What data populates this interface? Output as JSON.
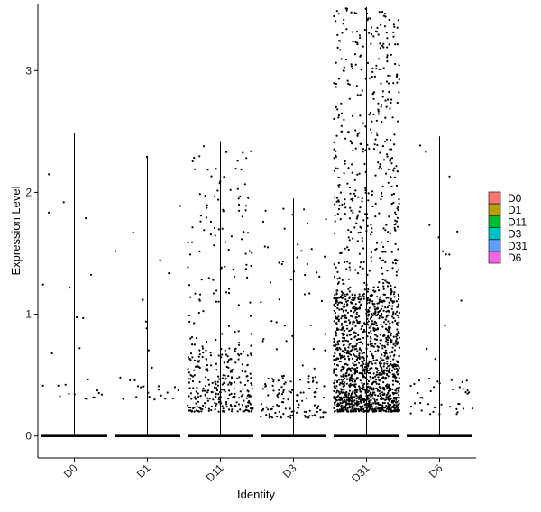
{
  "chart_data": {
    "type": "violin-jitter",
    "xlabel": "Identity",
    "ylabel": "Expression Level",
    "ylim": [
      -0.18,
      3.55
    ],
    "yticks": [
      0,
      1,
      2,
      3
    ],
    "categories": [
      "D0",
      "D1",
      "D11",
      "D3",
      "D31",
      "D6"
    ],
    "fill_colors": [
      "#F8766D",
      "#B79F00",
      "#00BA38",
      "#00BFC4",
      "#619CFF",
      "#F564E3"
    ],
    "max_values": [
      2.49,
      2.3,
      2.42,
      1.95,
      3.52,
      2.46
    ],
    "nonzero_point_counts": [
      25,
      30,
      380,
      160,
      1800,
      55
    ],
    "nonzero_min": [
      0.3,
      0.3,
      0.2,
      0.15,
      0.2,
      0.18
    ],
    "legend": {
      "placement": "right",
      "entries": [
        "D0",
        "D1",
        "D11",
        "D3",
        "D31",
        "D6"
      ]
    },
    "point_color": "#000000",
    "grid": false
  }
}
